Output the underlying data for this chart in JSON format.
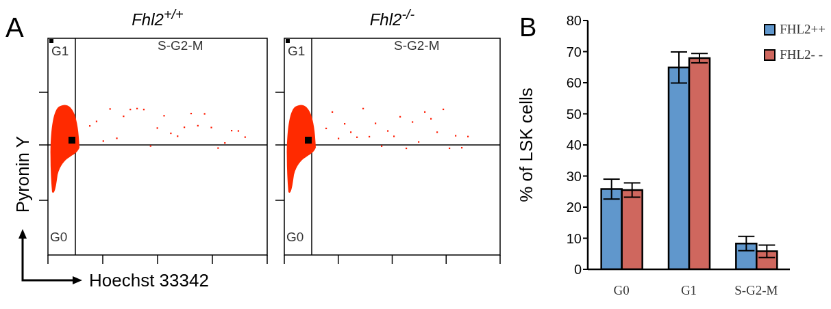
{
  "chart_data": [
    {
      "type": "other",
      "title": "Fhl2$^{+/+}$",
      "xlabel": "Hoechst 33342",
      "ylabel": "Pyronin Y",
      "annotations": [
        "G1",
        "S-G2-M",
        "G0",
        "A"
      ]
    },
    {
      "type": "other",
      "title": "Fhl2$^{-/-}$",
      "annotations": [
        "G1",
        "S-G2-M",
        "G0"
      ]
    },
    {
      "type": "bar",
      "categories": [
        "G0",
        "G1",
        "S-G2-M"
      ],
      "ylabel": "% of LSK cells",
      "ylim": [
        0,
        80
      ],
      "yticks": [
        0,
        10,
        20,
        30,
        40,
        50,
        60,
        70,
        80
      ],
      "grid": false,
      "legend": "top right",
      "annotations": [
        "B"
      ],
      "series": [
        {
          "name": "FHL2++",
          "color": "#6097cc",
          "values": [
            25.8,
            64.9,
            8.3
          ],
          "errors": [
            3.2,
            5,
            2.3
          ]
        },
        {
          "name": "FHL2- -",
          "color": "#cf675e",
          "values": [
            25.5,
            67.9,
            5.8
          ],
          "errors": [
            2.3,
            1.5,
            2
          ]
        }
      ]
    }
  ]
}
